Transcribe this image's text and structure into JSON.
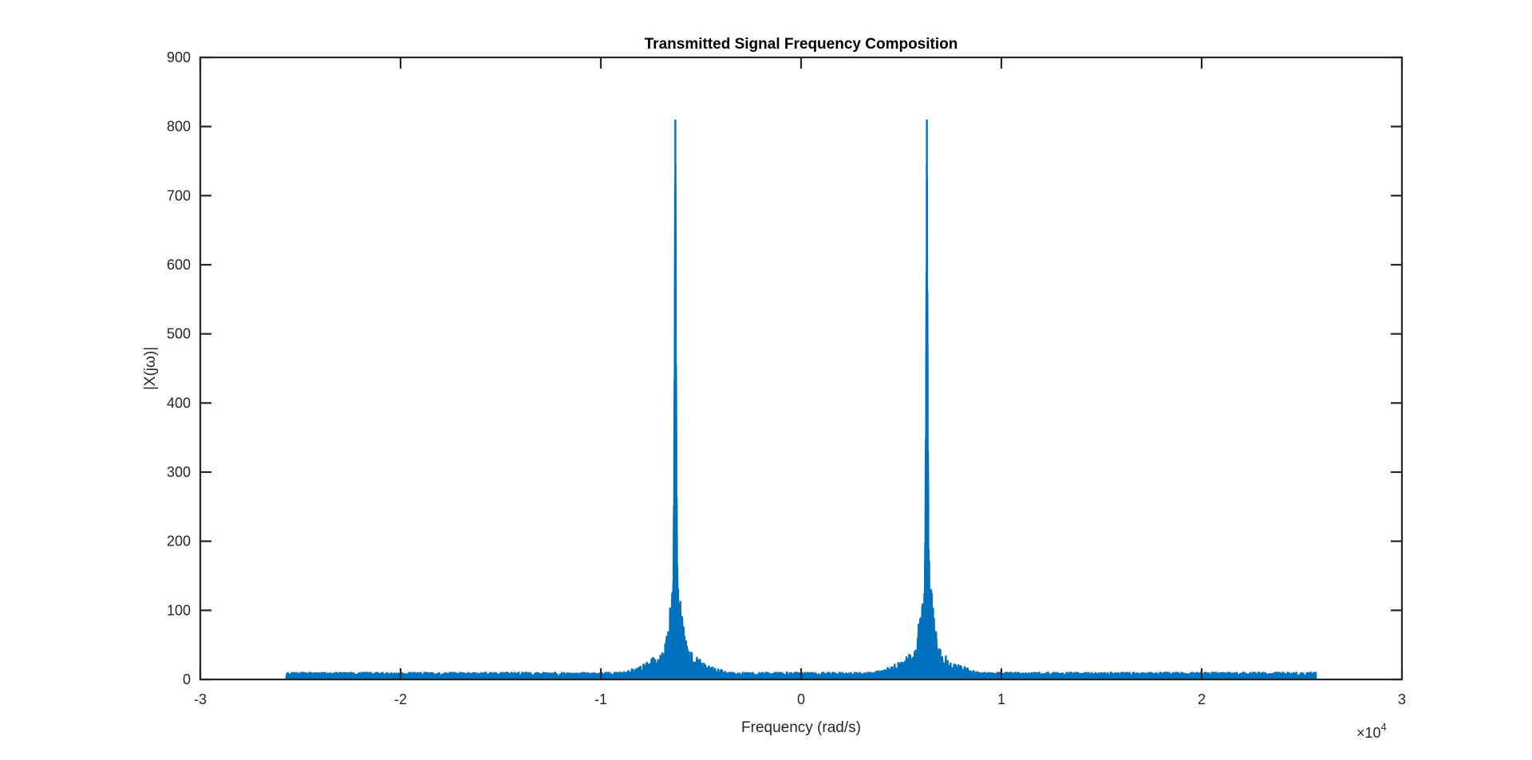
{
  "chart_data": {
    "type": "line",
    "title": "Transmitted Signal Frequency Composition",
    "xlabel": "Frequency (rad/s)",
    "ylabel": "|X(jω)|",
    "xlim": [
      -3,
      3
    ],
    "ylim": [
      0,
      900
    ],
    "x_multiplier": "×10",
    "x_multiplier_exponent": "4",
    "x_ticks": [
      -3,
      -2,
      -1,
      0,
      1,
      2,
      3
    ],
    "y_ticks": [
      0,
      100,
      200,
      300,
      400,
      500,
      600,
      700,
      800,
      900
    ],
    "grid": false,
    "legend": "none",
    "series": [
      {
        "color": "#0072BD",
        "x_range": [
          -2.57,
          2.57
        ],
        "peaks": [
          {
            "x": -0.628,
            "y": 810
          },
          {
            "x": 0.628,
            "y": 810
          }
        ],
        "noise_floor": 8
      }
    ]
  }
}
